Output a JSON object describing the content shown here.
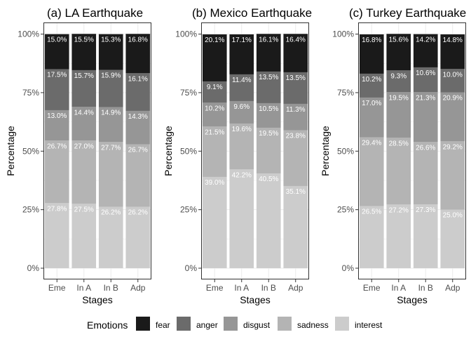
{
  "chart_data": [
    {
      "type": "bar",
      "stacked": true,
      "title": "(a) LA Earthquake",
      "xlabel": "Stages",
      "ylabel": "Percentage",
      "categories": [
        "Eme",
        "In A",
        "In B",
        "Adp"
      ],
      "ylim": [
        0,
        100
      ],
      "yticks": [
        "0%",
        "25%",
        "50%",
        "75%",
        "100%"
      ],
      "series": [
        {
          "name": "interest",
          "values": [
            27.8,
            27.5,
            26.2,
            26.2
          ]
        },
        {
          "name": "sadness",
          "values": [
            26.7,
            27.0,
            27.7,
            26.7
          ]
        },
        {
          "name": "disgust",
          "values": [
            13.0,
            14.4,
            14.9,
            14.3
          ]
        },
        {
          "name": "anger",
          "values": [
            17.5,
            15.7,
            15.9,
            16.1
          ]
        },
        {
          "name": "fear",
          "values": [
            15.0,
            15.5,
            15.3,
            16.8
          ]
        }
      ]
    },
    {
      "type": "bar",
      "stacked": true,
      "title": "(b) Mexico Earthquake",
      "xlabel": "Stages",
      "ylabel": "Percentage",
      "categories": [
        "Eme",
        "In A",
        "In B",
        "Adp"
      ],
      "ylim": [
        0,
        100
      ],
      "yticks": [
        "0%",
        "25%",
        "50%",
        "75%",
        "100%"
      ],
      "series": [
        {
          "name": "interest",
          "values": [
            39.0,
            42.2,
            40.5,
            35.1
          ]
        },
        {
          "name": "sadness",
          "values": [
            21.5,
            19.6,
            19.5,
            23.8
          ]
        },
        {
          "name": "disgust",
          "values": [
            10.2,
            9.6,
            10.5,
            11.3
          ]
        },
        {
          "name": "anger",
          "values": [
            9.1,
            11.4,
            13.5,
            13.5
          ]
        },
        {
          "name": "fear",
          "values": [
            20.1,
            17.1,
            16.1,
            16.4
          ]
        }
      ]
    },
    {
      "type": "bar",
      "stacked": true,
      "title": "(c) Turkey Earthquake",
      "xlabel": "Stages",
      "ylabel": "Percentage",
      "categories": [
        "Eme",
        "In A",
        "In B",
        "Adp"
      ],
      "ylim": [
        0,
        100
      ],
      "yticks": [
        "0%",
        "25%",
        "50%",
        "75%",
        "100%"
      ],
      "series": [
        {
          "name": "interest",
          "values": [
            26.5,
            27.2,
            27.3,
            25.0
          ]
        },
        {
          "name": "sadness",
          "values": [
            29.4,
            28.5,
            26.6,
            29.2
          ]
        },
        {
          "name": "disgust",
          "values": [
            17.0,
            19.5,
            21.3,
            20.9
          ]
        },
        {
          "name": "anger",
          "values": [
            10.2,
            9.3,
            10.6,
            10.0
          ]
        },
        {
          "name": "fear",
          "values": [
            16.8,
            15.6,
            14.2,
            14.8
          ]
        }
      ]
    }
  ],
  "legend": {
    "title": "Emotions",
    "position": "bottom",
    "items": [
      {
        "name": "fear",
        "color": "#1a1a1a"
      },
      {
        "name": "anger",
        "color": "#6b6b6b"
      },
      {
        "name": "disgust",
        "color": "#969696"
      },
      {
        "name": "sadness",
        "color": "#b4b4b4"
      },
      {
        "name": "interest",
        "color": "#cccccc"
      }
    ]
  },
  "colors": {
    "panel_background": "#ffffff",
    "panel_border": "#333333",
    "grid": "#ebebeb"
  }
}
